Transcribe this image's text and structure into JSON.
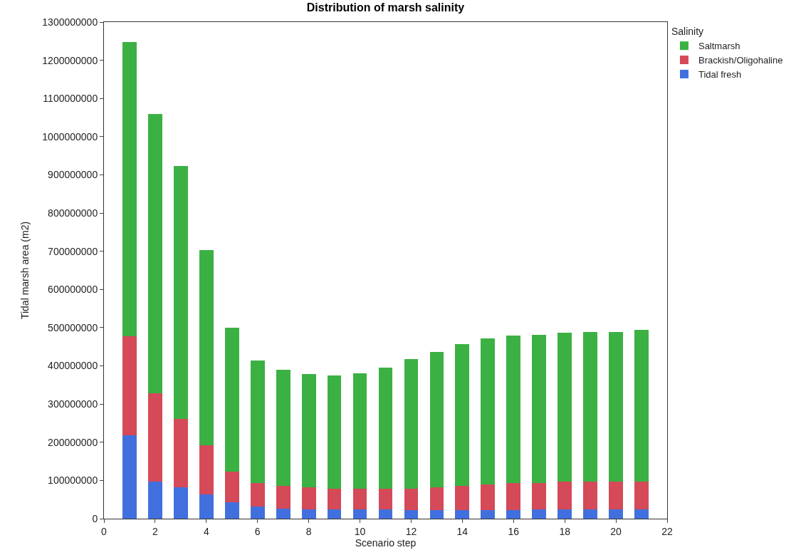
{
  "chart_data": {
    "type": "bar",
    "title": "Distribution of marsh salinity",
    "xlabel": "Scenario step",
    "ylabel": "Tidal marsh area (m2)",
    "legend_title": "Salinity",
    "x": [
      1,
      2,
      3,
      4,
      5,
      6,
      7,
      8,
      9,
      10,
      11,
      12,
      13,
      14,
      15,
      16,
      17,
      18,
      19,
      20,
      21
    ],
    "stacked": true,
    "series": [
      {
        "name": "Tidal fresh",
        "color": "#4170de",
        "values": [
          218000000,
          97000000,
          82000000,
          64000000,
          42000000,
          32000000,
          27000000,
          25000000,
          25000000,
          25000000,
          25000000,
          22000000,
          22000000,
          22000000,
          22000000,
          22000000,
          25000000,
          25000000,
          25000000,
          25000000,
          25000000
        ]
      },
      {
        "name": "Brackish/Oligohaline",
        "color": "#d44a58",
        "values": [
          260000000,
          231000000,
          179000000,
          129000000,
          82000000,
          62000000,
          58000000,
          57000000,
          54000000,
          54000000,
          54000000,
          57000000,
          60000000,
          63000000,
          67000000,
          71000000,
          68000000,
          72000000,
          72000000,
          72000000,
          72000000
        ]
      },
      {
        "name": "Saltmarsh",
        "color": "#3bb143",
        "values": [
          769000000,
          732000000,
          662000000,
          511000000,
          375000000,
          321000000,
          305000000,
          296000000,
          296000000,
          301000000,
          316000000,
          339000000,
          355000000,
          372000000,
          383000000,
          386000000,
          388000000,
          389000000,
          392000000,
          392000000,
          397000000
        ]
      }
    ],
    "xlim": [
      0,
      22
    ],
    "xticks": [
      0,
      2,
      4,
      6,
      8,
      10,
      12,
      14,
      16,
      18,
      20,
      22
    ],
    "ylim": [
      0,
      1300000000
    ],
    "yticks": [
      0,
      100000000,
      200000000,
      300000000,
      400000000,
      500000000,
      600000000,
      700000000,
      800000000,
      900000000,
      1000000000,
      1100000000,
      1200000000,
      1300000000
    ],
    "legend": "top right"
  }
}
